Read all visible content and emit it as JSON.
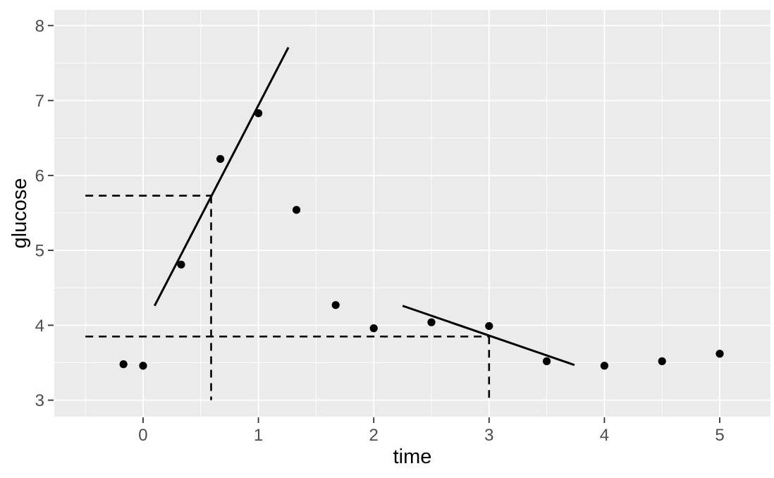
{
  "chart_data": {
    "type": "scatter",
    "title": "",
    "xlabel": "time",
    "ylabel": "glucose",
    "x_domain": [
      -0.77,
      5.44
    ],
    "y_domain": [
      2.78,
      8.21
    ],
    "x_ticks": [
      0,
      1,
      2,
      3,
      4,
      5
    ],
    "y_ticks": [
      3,
      4,
      5,
      6,
      7,
      8
    ],
    "x_minor": [
      -0.5,
      0.5,
      1.5,
      2.5,
      3.5,
      4.5
    ],
    "y_minor": [
      3.5,
      4.5,
      5.5,
      6.5,
      7.5
    ],
    "grid": true,
    "legend_position": "none",
    "points": [
      [
        -0.17,
        3.48
      ],
      [
        0.0,
        3.46
      ],
      [
        0.33,
        4.81
      ],
      [
        0.67,
        6.22
      ],
      [
        1.0,
        6.83
      ],
      [
        1.33,
        5.54
      ],
      [
        1.67,
        4.27
      ],
      [
        2.0,
        3.96
      ],
      [
        2.5,
        4.04
      ],
      [
        3.0,
        3.99
      ],
      [
        3.5,
        3.52
      ],
      [
        4.0,
        3.46
      ],
      [
        4.5,
        3.52
      ],
      [
        5.0,
        3.62
      ]
    ],
    "fit_segments": [
      {
        "name": "rising-slope-line",
        "x1": 0.1,
        "y1": 4.26,
        "x2": 1.26,
        "y2": 7.71
      },
      {
        "name": "falling-slope-line",
        "x1": 2.25,
        "y1": 4.26,
        "x2": 3.74,
        "y2": 3.47
      }
    ],
    "dashed_guides": [
      {
        "name": "upper-guide-horizontal",
        "x1": -0.5,
        "y1": 5.73,
        "x2": 0.59,
        "y2": 5.73
      },
      {
        "name": "upper-guide-vertical",
        "x1": 0.59,
        "y1": 5.73,
        "x2": 0.59,
        "y2": 3.0
      },
      {
        "name": "lower-guide-horizontal",
        "x1": -0.5,
        "y1": 3.85,
        "x2": 3.0,
        "y2": 3.85
      },
      {
        "name": "lower-guide-vertical",
        "x1": 3.0,
        "y1": 3.85,
        "x2": 3.0,
        "y2": 3.0
      }
    ],
    "guide_intersections": [
      {
        "x": 0.59,
        "y": 5.73
      },
      {
        "x": 3.0,
        "y": 3.85
      }
    ],
    "colors": {
      "outer_bg": "#FFFFFF",
      "panel_bg": "#EBEBEB",
      "grid": "#FFFFFF",
      "point": "#000000",
      "line": "#000000",
      "dashed": "#000000",
      "tick": "#333333",
      "tick_label": "#4D4D4D",
      "axis_title": "#000000"
    }
  }
}
